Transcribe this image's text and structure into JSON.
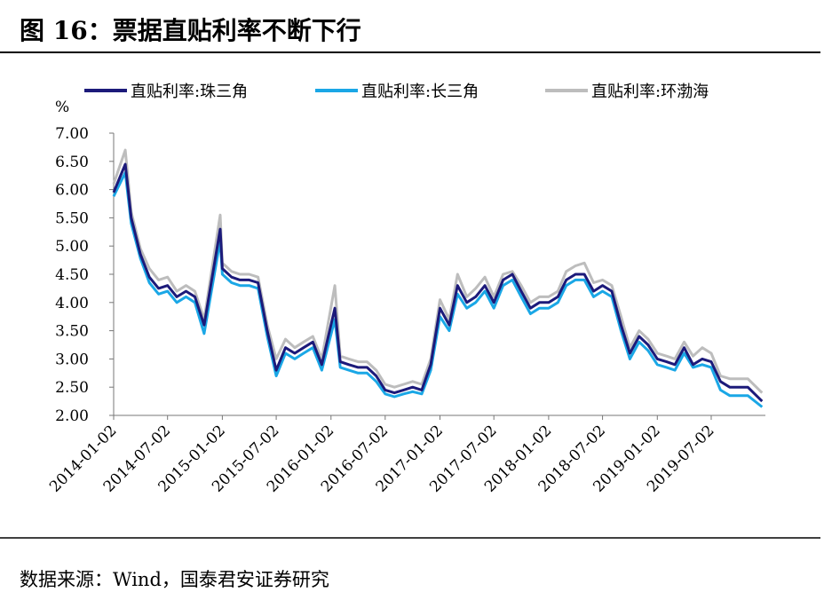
{
  "title": "图 16：票据直贴利率不断下行",
  "source": "数据来源：Wind，国泰君安证券研究",
  "chart_data": {
    "type": "line",
    "y_unit": "%",
    "x": [
      "2014-01-02",
      "2014-02-10",
      "2014-03-02",
      "2014-04-02",
      "2014-05-02",
      "2014-06-02",
      "2014-07-02",
      "2014-08-02",
      "2014-09-02",
      "2014-10-02",
      "2014-11-02",
      "2014-12-26",
      "2015-01-02",
      "2015-02-02",
      "2015-03-02",
      "2015-04-02",
      "2015-05-02",
      "2015-06-02",
      "2015-07-02",
      "2015-08-02",
      "2015-09-02",
      "2015-10-02",
      "2015-11-02",
      "2015-12-02",
      "2016-01-15",
      "2016-02-02",
      "2016-03-02",
      "2016-04-02",
      "2016-05-02",
      "2016-06-02",
      "2016-07-02",
      "2016-08-02",
      "2016-09-02",
      "2016-10-02",
      "2016-11-02",
      "2016-12-02",
      "2017-01-02",
      "2017-02-02",
      "2017-03-02",
      "2017-04-02",
      "2017-05-02",
      "2017-06-02",
      "2017-07-02",
      "2017-08-02",
      "2017-09-02",
      "2017-10-02",
      "2017-11-02",
      "2017-12-02",
      "2018-01-02",
      "2018-02-02",
      "2018-03-02",
      "2018-04-02",
      "2018-05-02",
      "2018-06-02",
      "2018-07-02",
      "2018-08-02",
      "2018-09-02",
      "2018-10-02",
      "2018-11-02",
      "2018-12-02",
      "2019-01-02",
      "2019-02-02",
      "2019-03-02",
      "2019-04-02",
      "2019-05-02",
      "2019-06-02",
      "2019-07-02",
      "2019-08-02",
      "2019-09-02",
      "2019-10-02",
      "2019-11-02",
      "2019-12-20"
    ],
    "series": [
      {
        "name": "直贴利率:珠三角",
        "color": "#1c1a7a",
        "values": [
          5.95,
          6.45,
          5.5,
          4.85,
          4.45,
          4.25,
          4.3,
          4.1,
          4.2,
          4.1,
          3.6,
          5.3,
          4.6,
          4.45,
          4.4,
          4.4,
          4.35,
          3.5,
          2.8,
          3.2,
          3.1,
          3.2,
          3.3,
          2.9,
          3.9,
          2.95,
          2.9,
          2.85,
          2.85,
          2.7,
          2.45,
          2.4,
          2.45,
          2.5,
          2.45,
          2.9,
          3.9,
          3.6,
          4.3,
          4.0,
          4.1,
          4.3,
          4.0,
          4.4,
          4.5,
          4.2,
          3.9,
          4.0,
          4.0,
          4.1,
          4.4,
          4.5,
          4.5,
          4.2,
          4.3,
          4.2,
          3.6,
          3.1,
          3.4,
          3.25,
          3.0,
          2.95,
          2.9,
          3.2,
          2.9,
          3.0,
          2.95,
          2.6,
          2.5,
          2.5,
          2.5,
          2.25
        ]
      },
      {
        "name": "直贴利率:长三角",
        "color": "#1aa7e6",
        "values": [
          5.88,
          6.3,
          5.4,
          4.78,
          4.35,
          4.15,
          4.2,
          4.0,
          4.1,
          4.0,
          3.45,
          5.1,
          4.5,
          4.35,
          4.3,
          4.3,
          4.25,
          3.4,
          2.7,
          3.1,
          3.0,
          3.1,
          3.2,
          2.8,
          3.7,
          2.85,
          2.8,
          2.75,
          2.75,
          2.6,
          2.38,
          2.33,
          2.38,
          2.42,
          2.38,
          2.8,
          3.75,
          3.5,
          4.15,
          3.9,
          4.0,
          4.2,
          3.9,
          4.3,
          4.4,
          4.1,
          3.8,
          3.9,
          3.9,
          4.0,
          4.3,
          4.4,
          4.4,
          4.1,
          4.2,
          4.1,
          3.5,
          3.0,
          3.3,
          3.15,
          2.9,
          2.85,
          2.8,
          3.1,
          2.85,
          2.9,
          2.85,
          2.45,
          2.35,
          2.35,
          2.35,
          2.15
        ]
      },
      {
        "name": "直贴利率:环渤海",
        "color": "#bdbdbd",
        "values": [
          6.1,
          6.7,
          5.6,
          4.95,
          4.6,
          4.4,
          4.45,
          4.2,
          4.3,
          4.2,
          3.7,
          5.55,
          4.7,
          4.55,
          4.5,
          4.5,
          4.45,
          3.6,
          3.0,
          3.35,
          3.2,
          3.3,
          3.4,
          3.0,
          4.3,
          3.05,
          3.0,
          2.95,
          2.95,
          2.8,
          2.55,
          2.5,
          2.55,
          2.6,
          2.55,
          3.0,
          4.05,
          3.7,
          4.5,
          4.1,
          4.25,
          4.45,
          4.1,
          4.5,
          4.55,
          4.3,
          4.0,
          4.1,
          4.1,
          4.2,
          4.55,
          4.65,
          4.7,
          4.35,
          4.4,
          4.3,
          3.75,
          3.2,
          3.5,
          3.35,
          3.1,
          3.05,
          3.0,
          3.3,
          3.05,
          3.2,
          3.1,
          2.7,
          2.65,
          2.65,
          2.65,
          2.4
        ]
      }
    ],
    "xlim": [
      "2014-01-02",
      "2019-12-31"
    ],
    "xticks": [
      "2014-01-02",
      "2014-07-02",
      "2015-01-02",
      "2015-07-02",
      "2016-01-02",
      "2016-07-02",
      "2017-01-02",
      "2017-07-02",
      "2018-01-02",
      "2018-07-02",
      "2019-01-02",
      "2019-07-02"
    ],
    "ylim": [
      2,
      7
    ],
    "yticks": [
      {
        "value": 2,
        "label": "2.00"
      },
      {
        "value": 2.5,
        "label": "2.50"
      },
      {
        "value": 3,
        "label": "3.00"
      },
      {
        "value": 3.5,
        "label": "3.50"
      },
      {
        "value": 4,
        "label": "4.00"
      },
      {
        "value": 4.5,
        "label": "4.50"
      },
      {
        "value": 5,
        "label": "5.00"
      },
      {
        "value": 5.5,
        "label": "5.50"
      },
      {
        "value": 6,
        "label": "6.00"
      },
      {
        "value": 6.5,
        "label": "6.50"
      },
      {
        "value": 7,
        "label": "7.00"
      }
    ],
    "legend": "top"
  }
}
